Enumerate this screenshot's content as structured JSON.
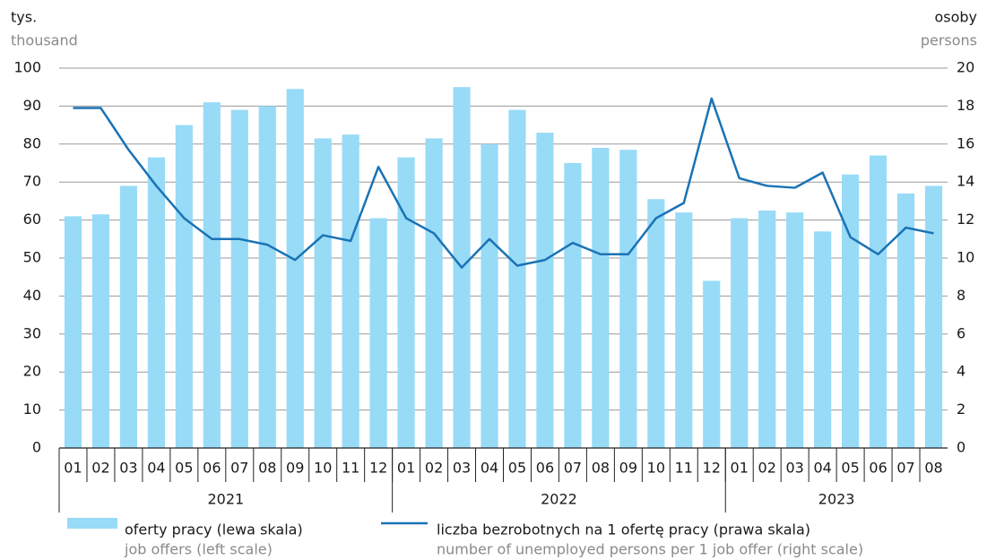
{
  "chart_data": {
    "type": "bar_line",
    "ylabel": "tys.",
    "ylabel_en": "thousand",
    "y2label": "osoby",
    "y2label_en": "persons",
    "categories": [
      "01",
      "02",
      "03",
      "04",
      "05",
      "06",
      "07",
      "08",
      "09",
      "10",
      "11",
      "12",
      "01",
      "02",
      "03",
      "04",
      "05",
      "06",
      "07",
      "08",
      "09",
      "10",
      "11",
      "12",
      "01",
      "02",
      "03",
      "04",
      "05",
      "06",
      "07",
      "08"
    ],
    "category_groups": [
      "2021",
      "2022",
      "2023"
    ],
    "group_sizes": [
      12,
      12,
      8
    ],
    "series": [
      {
        "name": "oferty pracy (lewa skala)",
        "name_en": "job offers (left scale)",
        "kind": "bar",
        "color": "#98dbf7",
        "values": [
          61,
          61.5,
          69,
          76.5,
          85,
          91,
          89,
          90,
          94.5,
          81.5,
          82.5,
          60.5,
          76.5,
          81.5,
          95,
          80,
          89,
          83,
          75,
          79,
          78.5,
          65.5,
          62,
          44,
          60.5,
          62.5,
          62,
          57,
          72,
          77,
          67,
          69
        ]
      },
      {
        "name": "liczba bezrobotnych na 1 ofertę pracy (prawa skala)",
        "name_en": "number of unemployed persons per 1 job offer (right scale)",
        "kind": "line",
        "axis": "y2",
        "color": "#1a73b5",
        "values": [
          17.9,
          17.9,
          15.7,
          13.8,
          12.1,
          11.0,
          11.0,
          10.7,
          9.9,
          11.2,
          10.9,
          14.8,
          12.1,
          11.3,
          9.5,
          11.0,
          9.6,
          9.9,
          10.8,
          10.2,
          10.2,
          12.1,
          12.9,
          18.4,
          14.2,
          13.8,
          13.7,
          14.5,
          11.1,
          10.2,
          11.6,
          11.3
        ]
      }
    ],
    "ylim": [
      0,
      100
    ],
    "yticks": [
      0,
      10,
      20,
      30,
      40,
      50,
      60,
      70,
      80,
      90,
      100
    ],
    "y2lim": [
      0,
      20
    ],
    "y2ticks": [
      0,
      2,
      4,
      6,
      8,
      10,
      12,
      14,
      16,
      18,
      20
    ],
    "grid": true
  }
}
